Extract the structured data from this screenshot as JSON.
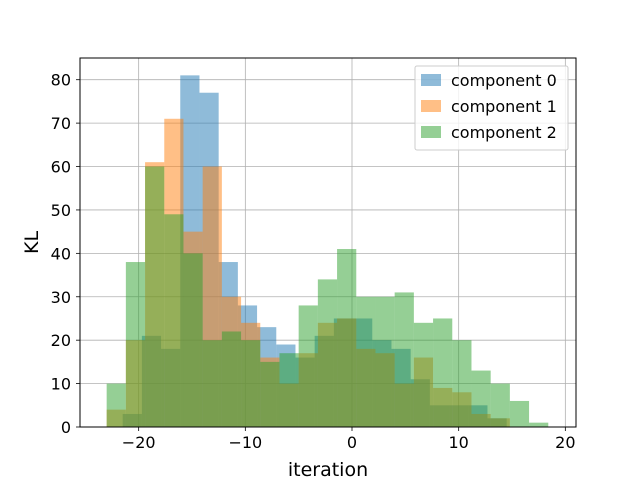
{
  "chart_data": {
    "type": "histogram",
    "title": "",
    "xlabel": "iteration",
    "ylabel": "KL",
    "xlim": [
      -25.5,
      21
    ],
    "ylim": [
      0,
      85
    ],
    "xticks": [
      -20,
      -10,
      0,
      10,
      20
    ],
    "xtick_labels": [
      "−20",
      "−10",
      "0",
      "10",
      "20"
    ],
    "yticks": [
      0,
      10,
      20,
      30,
      40,
      50,
      60,
      70,
      80
    ],
    "ytick_labels": [
      "0",
      "10",
      "20",
      "30",
      "40",
      "50",
      "60",
      "70",
      "80"
    ],
    "grid": true,
    "legend_position": "top-right",
    "bar_alpha": 0.5,
    "series": [
      {
        "name": "component 0",
        "color": "#1f77b4",
        "bins": [
          [
            -21.5,
            -19.7,
            3
          ],
          [
            -19.7,
            -17.9,
            21
          ],
          [
            -17.9,
            -16.1,
            18
          ],
          [
            -16.1,
            -14.3,
            81
          ],
          [
            -14.3,
            -12.5,
            77
          ],
          [
            -12.5,
            -10.7,
            38
          ],
          [
            -10.7,
            -8.9,
            28
          ],
          [
            -8.9,
            -7.1,
            23
          ],
          [
            -7.1,
            -5.3,
            19
          ],
          [
            -5.3,
            -3.5,
            16
          ],
          [
            -3.5,
            -1.7,
            21
          ],
          [
            -1.7,
            0.1,
            25
          ],
          [
            0.1,
            1.9,
            25
          ],
          [
            1.9,
            3.7,
            20
          ],
          [
            3.7,
            5.5,
            18
          ],
          [
            5.5,
            7.3,
            11
          ],
          [
            7.3,
            9.1,
            5
          ],
          [
            9.1,
            10.9,
            5
          ],
          [
            10.9,
            12.7,
            5
          ],
          [
            12.7,
            14.5,
            2
          ]
        ]
      },
      {
        "name": "component 1",
        "color": "#ff7f0e",
        "bins": [
          [
            -23.0,
            -21.2,
            4
          ],
          [
            -21.2,
            -19.4,
            20
          ],
          [
            -19.4,
            -17.6,
            61
          ],
          [
            -17.6,
            -15.8,
            71
          ],
          [
            -15.8,
            -14.0,
            45
          ],
          [
            -14.0,
            -12.2,
            60
          ],
          [
            -12.2,
            -10.4,
            30
          ],
          [
            -10.4,
            -8.6,
            24
          ],
          [
            -8.6,
            -6.8,
            16
          ],
          [
            -6.8,
            -5.0,
            10
          ],
          [
            -5.0,
            -3.2,
            17
          ],
          [
            -3.2,
            -1.4,
            24
          ],
          [
            -1.4,
            0.4,
            25
          ],
          [
            0.4,
            2.2,
            18
          ],
          [
            2.2,
            4.0,
            17
          ],
          [
            4.0,
            5.8,
            10
          ],
          [
            5.8,
            7.6,
            16
          ],
          [
            7.6,
            9.4,
            9
          ],
          [
            9.4,
            11.2,
            8
          ],
          [
            11.2,
            13.0,
            3
          ],
          [
            13.0,
            14.8,
            2
          ]
        ]
      },
      {
        "name": "component 2",
        "color": "#2ca02c",
        "bins": [
          [
            -23.0,
            -21.2,
            10
          ],
          [
            -21.2,
            -19.4,
            38
          ],
          [
            -19.4,
            -17.6,
            60
          ],
          [
            -17.6,
            -15.8,
            49
          ],
          [
            -15.8,
            -14.0,
            40
          ],
          [
            -14.0,
            -12.2,
            20
          ],
          [
            -12.2,
            -10.4,
            22
          ],
          [
            -10.4,
            -8.6,
            20
          ],
          [
            -8.6,
            -6.8,
            15
          ],
          [
            -6.8,
            -5.0,
            17
          ],
          [
            -5.0,
            -3.2,
            28
          ],
          [
            -3.2,
            -1.4,
            34
          ],
          [
            -1.4,
            0.4,
            41
          ],
          [
            0.4,
            2.2,
            30
          ],
          [
            2.2,
            4.0,
            30
          ],
          [
            4.0,
            5.8,
            31
          ],
          [
            5.8,
            7.6,
            24
          ],
          [
            7.6,
            9.4,
            25
          ],
          [
            9.4,
            11.2,
            20
          ],
          [
            11.2,
            13.0,
            13
          ],
          [
            13.0,
            14.8,
            10
          ],
          [
            14.8,
            16.6,
            6
          ],
          [
            16.6,
            18.4,
            1
          ]
        ]
      }
    ]
  }
}
